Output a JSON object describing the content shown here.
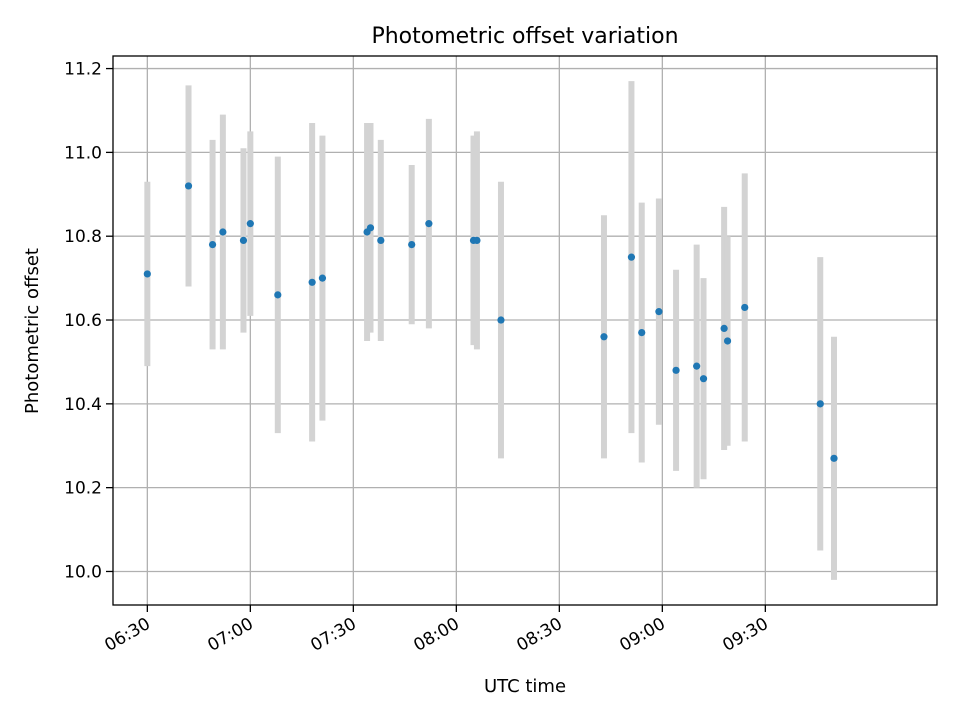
{
  "chart_data": {
    "type": "scatter",
    "title": "Photometric offset variation",
    "xlabel": "UTC time",
    "ylabel": "Photometric offset",
    "x_tick_labels": [
      "06:30",
      "07:00",
      "07:30",
      "08:00",
      "08:30",
      "09:00",
      "09:30"
    ],
    "x_ticks": [
      "06:30",
      "07:00",
      "07:30",
      "08:00",
      "08:30",
      "09:00",
      "09:30"
    ],
    "y_ticks": [
      10.0,
      10.2,
      10.4,
      10.6,
      10.8,
      11.0,
      11.2
    ],
    "y_tick_labels": [
      "10.0",
      "10.2",
      "10.4",
      "10.6",
      "10.8",
      "11.0",
      "11.2"
    ],
    "xlim": [
      "06:20",
      "10:20"
    ],
    "ylim": [
      9.92,
      11.23
    ],
    "grid": true,
    "point_color": "#1f77b4",
    "errorbar_color": "#d3d3d3",
    "series": [
      {
        "points": [
          {
            "x": "06:30",
            "y": 10.71,
            "err": 0.22
          },
          {
            "x": "06:42",
            "y": 10.92,
            "err": 0.24
          },
          {
            "x": "06:49",
            "y": 10.78,
            "err": 0.25
          },
          {
            "x": "06:52",
            "y": 10.81,
            "err": 0.28
          },
          {
            "x": "06:58",
            "y": 10.79,
            "err": 0.22
          },
          {
            "x": "07:00",
            "y": 10.83,
            "err": 0.22
          },
          {
            "x": "07:08",
            "y": 10.66,
            "err": 0.33
          },
          {
            "x": "07:18",
            "y": 10.69,
            "err": 0.38
          },
          {
            "x": "07:21",
            "y": 10.7,
            "err": 0.34
          },
          {
            "x": "07:34",
            "y": 10.81,
            "err": 0.26
          },
          {
            "x": "07:35",
            "y": 10.82,
            "err": 0.25
          },
          {
            "x": "07:38",
            "y": 10.79,
            "err": 0.24
          },
          {
            "x": "07:47",
            "y": 10.78,
            "err": 0.19
          },
          {
            "x": "07:52",
            "y": 10.83,
            "err": 0.25
          },
          {
            "x": "08:05",
            "y": 10.79,
            "err": 0.25
          },
          {
            "x": "08:06",
            "y": 10.79,
            "err": 0.26
          },
          {
            "x": "08:13",
            "y": 10.6,
            "err": 0.33
          },
          {
            "x": "08:43",
            "y": 10.56,
            "err": 0.29
          },
          {
            "x": "08:51",
            "y": 10.75,
            "err": 0.42
          },
          {
            "x": "08:54",
            "y": 10.57,
            "err": 0.31
          },
          {
            "x": "08:59",
            "y": 10.62,
            "err": 0.27
          },
          {
            "x": "09:04",
            "y": 10.48,
            "err": 0.24
          },
          {
            "x": "09:10",
            "y": 10.49,
            "err": 0.29
          },
          {
            "x": "09:12",
            "y": 10.46,
            "err": 0.24
          },
          {
            "x": "09:18",
            "y": 10.58,
            "err": 0.29
          },
          {
            "x": "09:19",
            "y": 10.55,
            "err": 0.25
          },
          {
            "x": "09:24",
            "y": 10.63,
            "err": 0.32
          },
          {
            "x": "09:46",
            "y": 10.4,
            "err": 0.35
          },
          {
            "x": "09:50",
            "y": 10.27,
            "err": 0.29
          }
        ]
      }
    ]
  }
}
